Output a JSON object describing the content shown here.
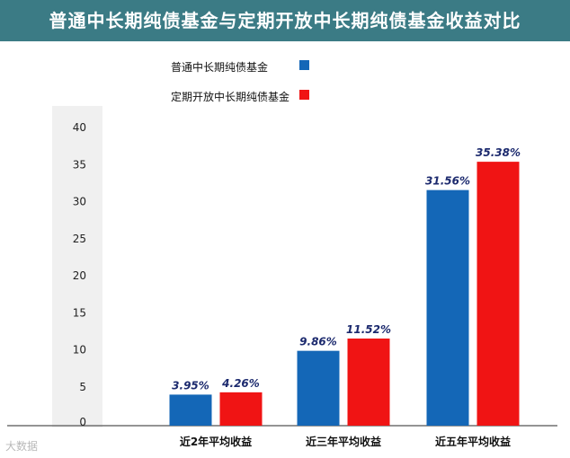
{
  "chart_data": {
    "type": "bar",
    "title": "普通中长期纯债基金与定期开放中长期纯债基金收益对比",
    "categories": [
      "近2年平均收益",
      "近三年平均收益",
      "近五年平均收益"
    ],
    "series": [
      {
        "name": "普通中长期纯债基金",
        "color": "#1467b7",
        "values": [
          3.95,
          9.86,
          31.56
        ],
        "labels": [
          "3.95%",
          "9.86%",
          "31.56%"
        ]
      },
      {
        "name": "定期开放中长期纯债基金",
        "color": "#f01414",
        "values": [
          4.26,
          11.52,
          35.38
        ],
        "labels": [
          "4.26%",
          "11.52%",
          "35.38%"
        ]
      }
    ],
    "ylim": [
      0,
      40
    ],
    "yticks": [
      0,
      5,
      10,
      15,
      20,
      25,
      30,
      35,
      40
    ],
    "grid": false,
    "legend_position": "top"
  },
  "colors": {
    "title_bg": "#3b7b85",
    "axis_band": "#f0f0f0",
    "label_text": "#1c2a6e"
  },
  "watermark": "大数据"
}
